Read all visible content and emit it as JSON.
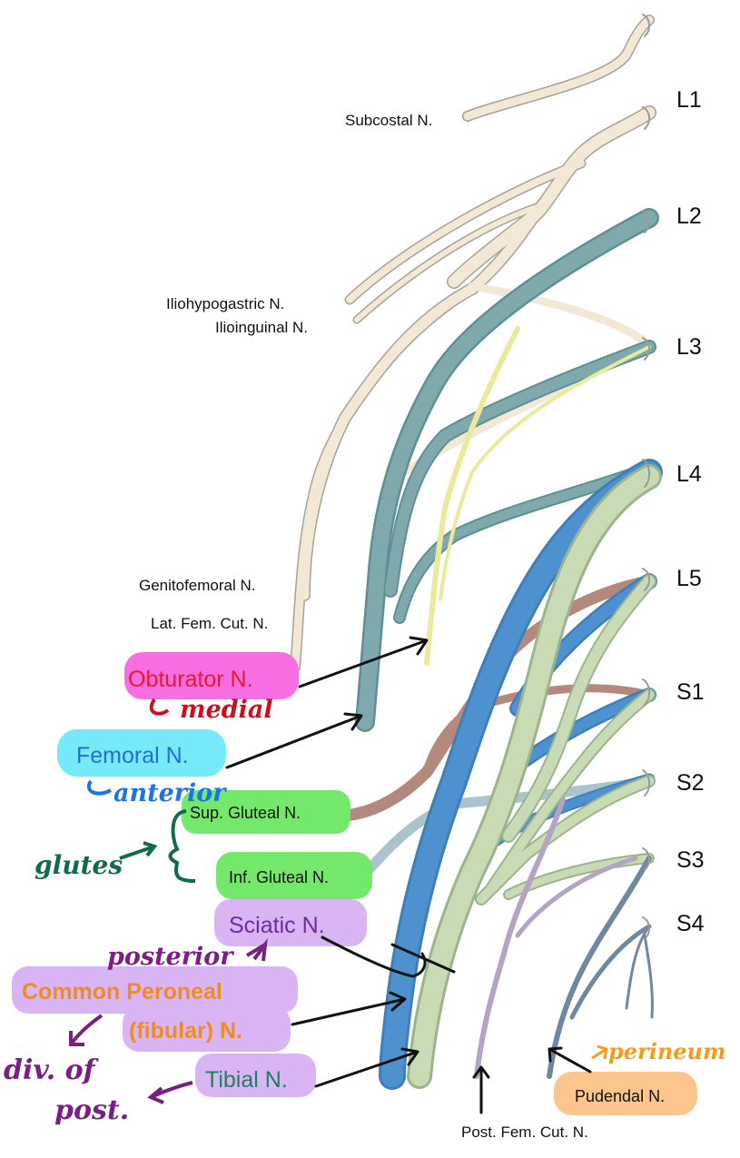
{
  "levels": [
    "L1",
    "L2",
    "L3",
    "L4",
    "L5",
    "S1",
    "S2",
    "S3",
    "S4"
  ],
  "nerves": {
    "subcostal": "Subcostal N.",
    "iliohypogastric": "Iliohypogastric N.",
    "ilioinguinal": "Ilioinguinal N.",
    "genitofemoral": "Genitofemoral N.",
    "lat_fem_cut": "Lat. Fem. Cut. N.",
    "obturator": "Obturator N.",
    "femoral": "Femoral N.",
    "sup_gluteal": "Sup. Gluteal N.",
    "inf_gluteal": "Inf. Gluteal N.",
    "sciatic": "Sciatic N.",
    "common_peroneal_1": "Common Peroneal",
    "common_peroneal_2": "(fibular)  N.",
    "tibial": "Tibial N.",
    "pudendal": "Pudendal N.",
    "post_fem_cut": "Post. Fem. Cut. N."
  },
  "handwritten": {
    "medial": "medial",
    "anterior": "anterior",
    "glutes": "glutes",
    "posterior": "posterior",
    "div_of": "div. of",
    "post": "post.",
    "perineum": "perineum"
  },
  "colors": {
    "obturator_highlight": "#f76ee3",
    "obturator_text": "#e8182e",
    "femoral_highlight": "#77eaf9",
    "femoral_text": "#1f6fd6",
    "gluteal_highlight": "#74e86a",
    "sciatic_highlight": "#d9b6f3",
    "peroneal_text": "#f08b1e",
    "tibial_text": "#1f7f5f",
    "pudendal_highlight": "#fbc68d",
    "handwriting_red": "#c8121e",
    "handwriting_blue": "#1a73e8",
    "handwriting_green": "#0f6b4b",
    "handwriting_purple": "#7a1f86",
    "handwriting_orange": "#f39c1c"
  }
}
